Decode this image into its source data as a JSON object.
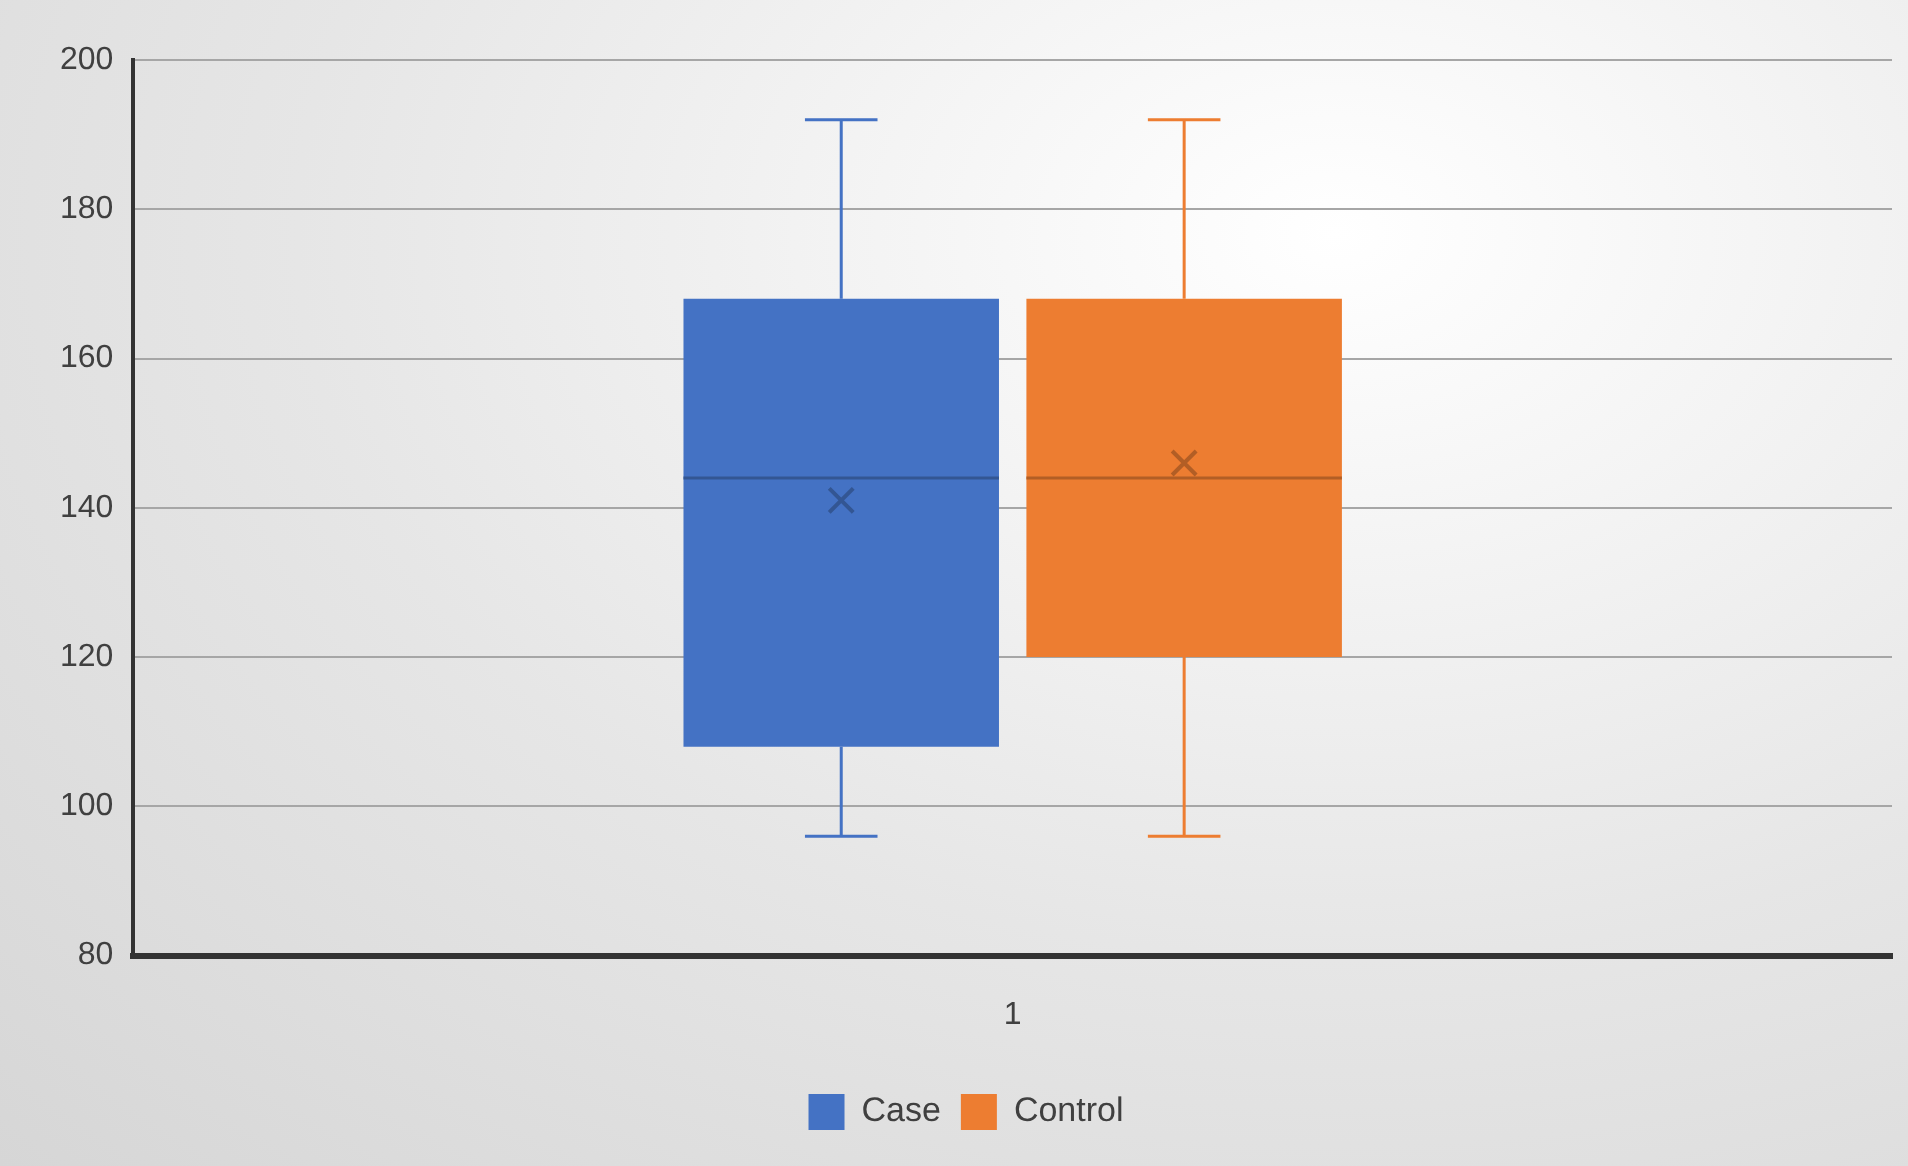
{
  "chart_data": {
    "type": "box",
    "categories": [
      "1"
    ],
    "series": [
      {
        "name": "Case",
        "color": "#4472c4",
        "boxes": [
          {
            "low": 96,
            "q1": 108,
            "median": 144,
            "q3": 168,
            "high": 192,
            "mean": 141
          }
        ]
      },
      {
        "name": "Control",
        "color": "#ed7d31",
        "boxes": [
          {
            "low": 96,
            "q1": 120,
            "median": 144,
            "q3": 168,
            "high": 192,
            "mean": 146
          }
        ]
      }
    ],
    "ylim": [
      80,
      200
    ],
    "yticks": [
      80,
      100,
      120,
      140,
      160,
      180,
      200
    ],
    "grid": "y",
    "legend": "bottom",
    "marker": "cross"
  }
}
